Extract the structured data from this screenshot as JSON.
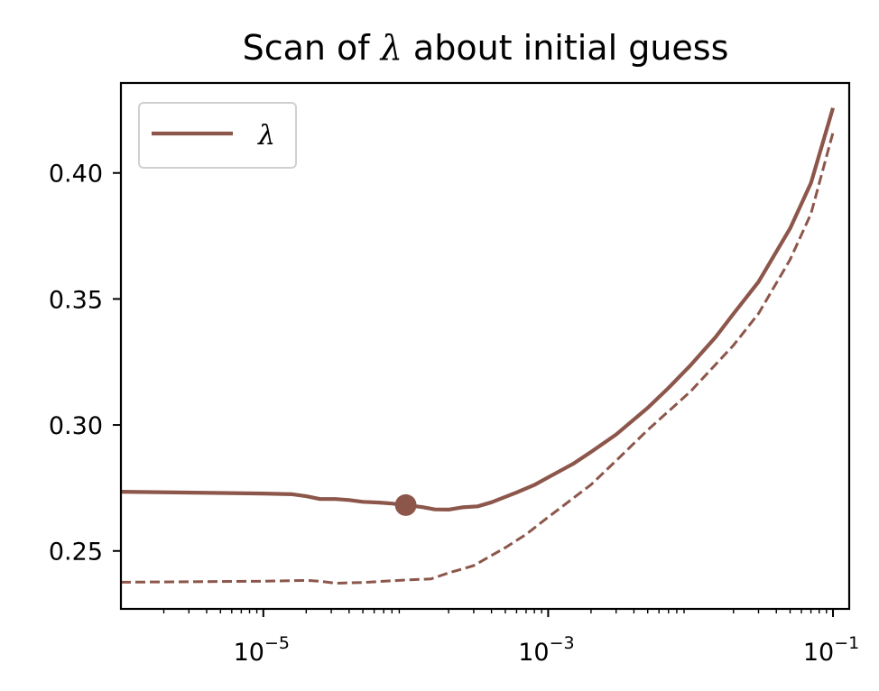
{
  "chart_data": {
    "type": "line",
    "title": "Scan of λ about initial guess",
    "title_prefix": "Scan of ",
    "title_symbol": "λ",
    "title_suffix": " about initial guess",
    "xlabel": "",
    "ylabel": "",
    "x_scale": "log",
    "xlim": [
      1e-06,
      0.13
    ],
    "ylim": [
      0.227,
      0.4357
    ],
    "x_ticks": [
      {
        "value": 1e-05,
        "base": "10",
        "exp": "−5"
      },
      {
        "value": 0.001,
        "base": "10",
        "exp": "−3"
      },
      {
        "value": 0.1,
        "base": "10",
        "exp": "−1"
      }
    ],
    "y_ticks": [
      {
        "value": 0.25,
        "label": "0.25"
      },
      {
        "value": 0.3,
        "label": "0.30"
      },
      {
        "value": 0.35,
        "label": "0.35"
      },
      {
        "value": 0.4,
        "label": "0.40"
      }
    ],
    "grid": false,
    "legend_position": "top-left",
    "series": [
      {
        "name": "λ",
        "color": "#8c564b",
        "style": "solid",
        "points": [
          [
            1e-06,
            0.2735
          ],
          [
            1e-05,
            0.2728
          ],
          [
            1.6e-05,
            0.2725
          ],
          [
            2e-05,
            0.2717
          ],
          [
            2.5e-05,
            0.2706
          ],
          [
            3.2e-05,
            0.2706
          ],
          [
            4e-05,
            0.2702
          ],
          [
            5e-05,
            0.2695
          ],
          [
            6.5e-05,
            0.2692
          ],
          [
            8e-05,
            0.2688
          ],
          [
            0.0001,
            0.2682
          ],
          [
            0.00013,
            0.2674
          ],
          [
            0.00016,
            0.2665
          ],
          [
            0.0002,
            0.2664
          ],
          [
            0.00025,
            0.2673
          ],
          [
            0.00032,
            0.2677
          ],
          [
            0.0004,
            0.2693
          ],
          [
            0.0006,
            0.2732
          ],
          [
            0.0008,
            0.2762
          ],
          [
            0.001,
            0.2792
          ],
          [
            0.0015,
            0.2846
          ],
          [
            0.002,
            0.2893
          ],
          [
            0.003,
            0.2962
          ],
          [
            0.005,
            0.3068
          ],
          [
            0.007,
            0.3147
          ],
          [
            0.01,
            0.3237
          ],
          [
            0.015,
            0.3349
          ],
          [
            0.02,
            0.3441
          ],
          [
            0.03,
            0.3568
          ],
          [
            0.05,
            0.378
          ],
          [
            0.07,
            0.396
          ],
          [
            0.1,
            0.4258
          ]
        ]
      },
      {
        "color": "#8c564b",
        "style": "dashed",
        "points": [
          [
            1e-06,
            0.2376
          ],
          [
            1e-05,
            0.238
          ],
          [
            2e-05,
            0.2383
          ],
          [
            2.5e-05,
            0.238
          ],
          [
            3.2e-05,
            0.2372
          ],
          [
            5e-05,
            0.2375
          ],
          [
            0.0001,
            0.2385
          ],
          [
            0.00015,
            0.2389
          ],
          [
            0.0002,
            0.2413
          ],
          [
            0.0003,
            0.2442
          ],
          [
            0.0005,
            0.2513
          ],
          [
            0.0007,
            0.2566
          ],
          [
            0.001,
            0.2634
          ],
          [
            0.002,
            0.2763
          ],
          [
            0.003,
            0.2858
          ],
          [
            0.005,
            0.298
          ],
          [
            0.01,
            0.3133
          ],
          [
            0.02,
            0.3316
          ],
          [
            0.03,
            0.3442
          ],
          [
            0.05,
            0.3656
          ],
          [
            0.07,
            0.3838
          ],
          [
            0.1,
            0.416
          ]
        ]
      }
    ],
    "markers": [
      {
        "x": 0.0001,
        "y": 0.2682,
        "color": "#8c564b"
      }
    ]
  }
}
